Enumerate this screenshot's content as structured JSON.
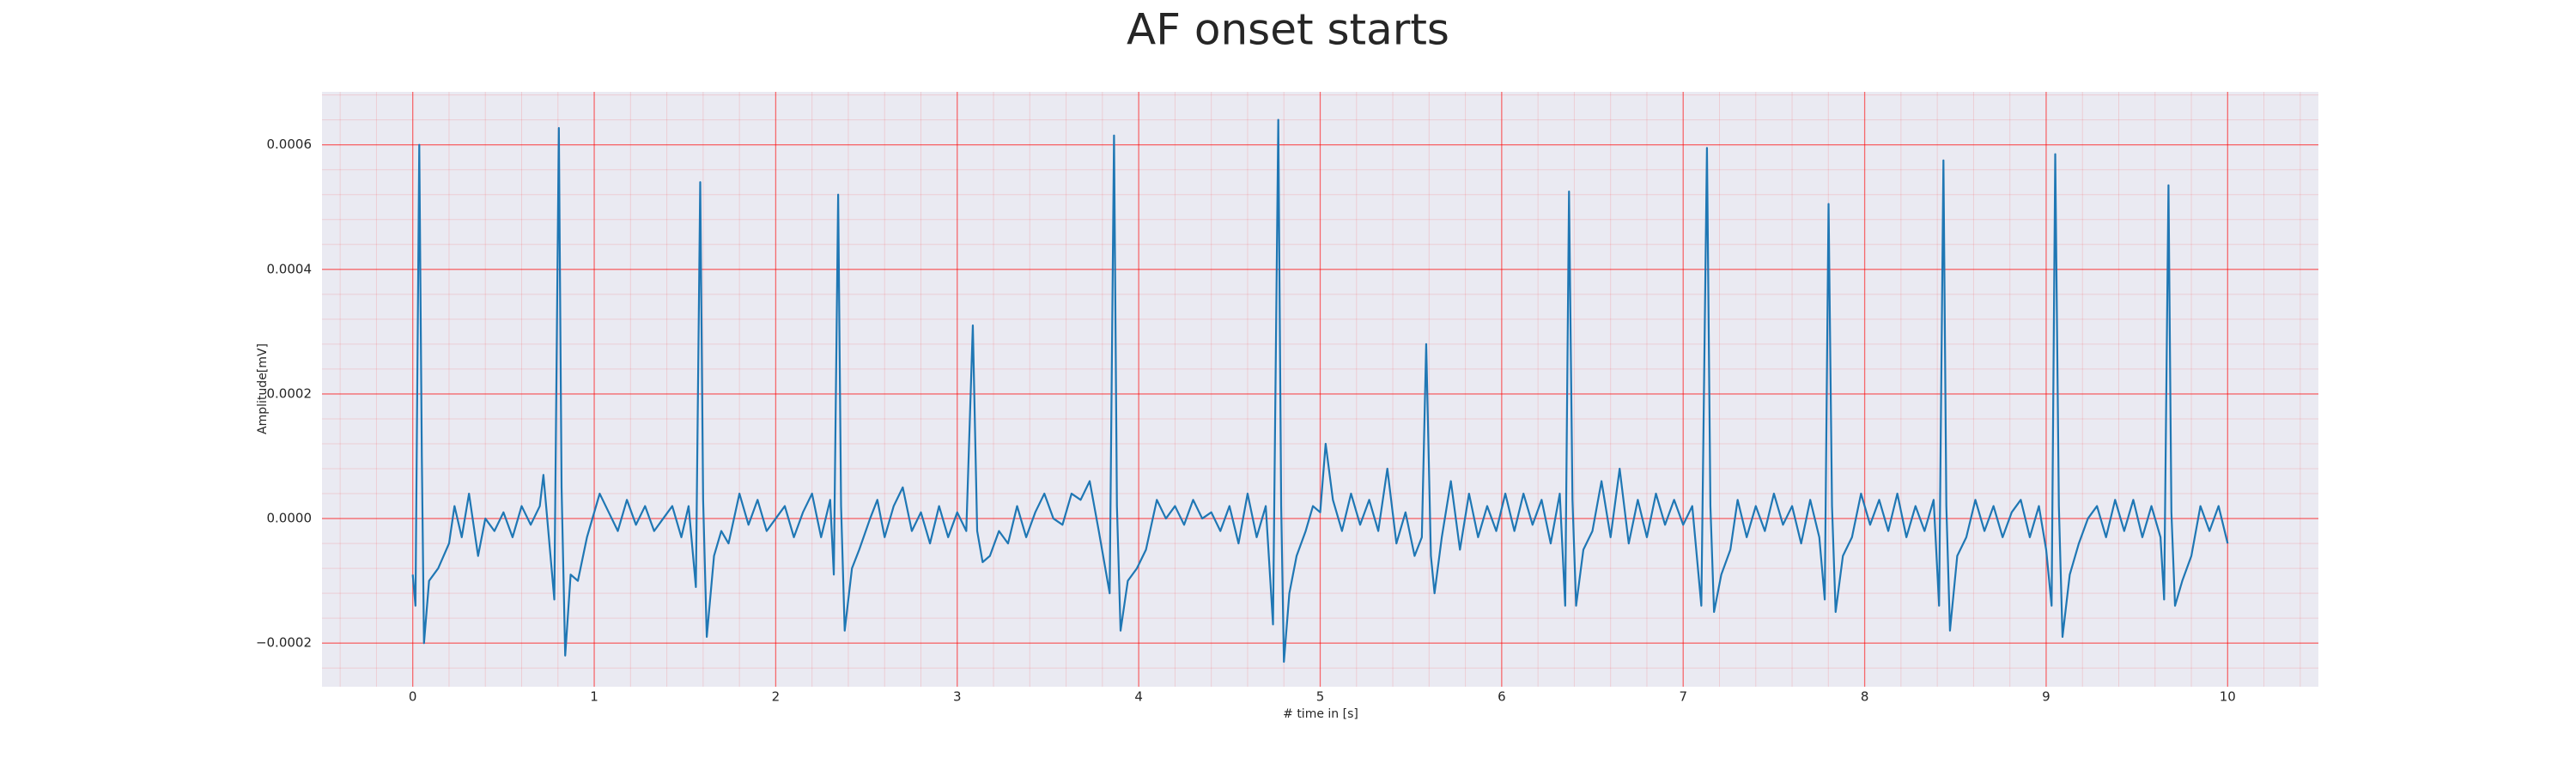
{
  "chart_data": {
    "type": "line",
    "title": "AF onset starts",
    "xlabel": "# time in [s]",
    "ylabel": "Amplitude[mV]",
    "x": [
      0,
      0.015,
      0.036,
      0.05,
      0.062,
      0.09,
      0.14,
      0.2,
      0.23,
      0.27,
      0.31,
      0.36,
      0.4,
      0.45,
      0.5,
      0.55,
      0.6,
      0.65,
      0.7,
      0.72,
      0.75,
      0.78,
      0.805,
      0.82,
      0.84,
      0.87,
      0.91,
      0.96,
      1.0,
      1.03,
      1.08,
      1.13,
      1.18,
      1.23,
      1.28,
      1.33,
      1.38,
      1.43,
      1.48,
      1.52,
      1.56,
      1.584,
      1.6,
      1.62,
      1.66,
      1.7,
      1.74,
      1.8,
      1.85,
      1.9,
      1.95,
      2.0,
      2.05,
      2.1,
      2.15,
      2.2,
      2.25,
      2.3,
      2.32,
      2.344,
      2.36,
      2.38,
      2.42,
      2.46,
      2.52,
      2.56,
      2.6,
      2.65,
      2.7,
      2.75,
      2.8,
      2.85,
      2.9,
      2.95,
      3.0,
      3.05,
      3.086,
      3.11,
      3.14,
      3.18,
      3.23,
      3.28,
      3.33,
      3.38,
      3.43,
      3.48,
      3.53,
      3.58,
      3.63,
      3.68,
      3.73,
      3.78,
      3.84,
      3.864,
      3.88,
      3.9,
      3.94,
      3.99,
      4.04,
      4.1,
      4.15,
      4.2,
      4.25,
      4.3,
      4.35,
      4.4,
      4.45,
      4.5,
      4.55,
      4.6,
      4.65,
      4.7,
      4.74,
      4.769,
      4.785,
      4.8,
      4.83,
      4.87,
      4.92,
      4.96,
      5.0,
      5.03,
      5.07,
      5.12,
      5.17,
      5.22,
      5.27,
      5.32,
      5.37,
      5.42,
      5.47,
      5.52,
      5.56,
      5.584,
      5.61,
      5.63,
      5.67,
      5.72,
      5.77,
      5.82,
      5.87,
      5.92,
      5.97,
      6.02,
      6.07,
      6.12,
      6.17,
      6.22,
      6.27,
      6.32,
      6.35,
      6.371,
      6.39,
      6.41,
      6.45,
      6.5,
      6.55,
      6.6,
      6.65,
      6.7,
      6.75,
      6.8,
      6.85,
      6.9,
      6.95,
      7.0,
      7.05,
      7.1,
      7.131,
      7.15,
      7.17,
      7.21,
      7.26,
      7.3,
      7.35,
      7.4,
      7.45,
      7.5,
      7.55,
      7.6,
      7.65,
      7.7,
      7.75,
      7.78,
      7.801,
      7.82,
      7.84,
      7.88,
      7.93,
      7.98,
      8.03,
      8.08,
      8.13,
      8.18,
      8.23,
      8.28,
      8.33,
      8.38,
      8.41,
      8.434,
      8.45,
      8.47,
      8.51,
      8.56,
      8.61,
      8.66,
      8.71,
      8.76,
      8.81,
      8.86,
      8.91,
      8.96,
      9.0,
      9.03,
      9.05,
      9.07,
      9.09,
      9.13,
      9.18,
      9.23,
      9.28,
      9.33,
      9.38,
      9.43,
      9.48,
      9.53,
      9.58,
      9.63,
      9.65,
      9.674,
      9.69,
      9.71,
      9.75,
      9.8,
      9.85,
      9.9,
      9.95,
      10.0
    ],
    "series": [
      {
        "color": "#1f77b4",
        "values": [
          -9e-05,
          -0.00014,
          0.0006,
          0.0001,
          -0.0002,
          -0.0001,
          -8e-05,
          -4e-05,
          2e-05,
          -3e-05,
          4e-05,
          -6e-05,
          0,
          -2e-05,
          1e-05,
          -3e-05,
          2e-05,
          -1e-05,
          2e-05,
          7e-05,
          -3e-05,
          -0.00013,
          0.000627,
          5e-05,
          -0.00022,
          -9e-05,
          -0.0001,
          -3e-05,
          1e-05,
          4e-05,
          1e-05,
          -2e-05,
          3e-05,
          -1e-05,
          2e-05,
          -2e-05,
          0,
          2e-05,
          -3e-05,
          2e-05,
          -0.00011,
          0.00054,
          3e-05,
          -0.00019,
          -6e-05,
          -2e-05,
          -4e-05,
          4e-05,
          -1e-05,
          3e-05,
          -2e-05,
          0,
          2e-05,
          -3e-05,
          1e-05,
          4e-05,
          -3e-05,
          3e-05,
          -9e-05,
          0.00052,
          2e-05,
          -0.00018,
          -8e-05,
          -5e-05,
          0,
          3e-05,
          -3e-05,
          2e-05,
          5e-05,
          -2e-05,
          1e-05,
          -4e-05,
          2e-05,
          -3e-05,
          1e-05,
          -2e-05,
          0.00031,
          -2e-05,
          -7e-05,
          -6e-05,
          -2e-05,
          -4e-05,
          2e-05,
          -3e-05,
          1e-05,
          4e-05,
          0,
          -1e-05,
          4e-05,
          3e-05,
          6e-05,
          -2e-05,
          -0.00012,
          0.000615,
          2e-05,
          -0.00018,
          -0.0001,
          -8e-05,
          -5e-05,
          3e-05,
          0,
          2e-05,
          -1e-05,
          3e-05,
          0,
          1e-05,
          -2e-05,
          2e-05,
          -4e-05,
          4e-05,
          -3e-05,
          2e-05,
          -0.00017,
          0.00064,
          2e-05,
          -0.00023,
          -0.00012,
          -6e-05,
          -2e-05,
          2e-05,
          1e-05,
          0.00012,
          3e-05,
          -2e-05,
          4e-05,
          -1e-05,
          3e-05,
          -2e-05,
          8e-05,
          -4e-05,
          1e-05,
          -6e-05,
          -3e-05,
          0.00028,
          -6e-05,
          -0.00012,
          -3e-05,
          6e-05,
          -5e-05,
          4e-05,
          -3e-05,
          2e-05,
          -2e-05,
          4e-05,
          -2e-05,
          4e-05,
          -1e-05,
          3e-05,
          -4e-05,
          4e-05,
          -0.00014,
          0.000525,
          3e-05,
          -0.00014,
          -5e-05,
          -2e-05,
          6e-05,
          -3e-05,
          8e-05,
          -4e-05,
          3e-05,
          -3e-05,
          4e-05,
          -1e-05,
          3e-05,
          -1e-05,
          2e-05,
          -0.00014,
          0.000595,
          2e-05,
          -0.00015,
          -9e-05,
          -5e-05,
          3e-05,
          -3e-05,
          2e-05,
          -2e-05,
          4e-05,
          -1e-05,
          2e-05,
          -4e-05,
          3e-05,
          -3e-05,
          -0.00013,
          0.000505,
          2e-05,
          -0.00015,
          -6e-05,
          -3e-05,
          4e-05,
          -1e-05,
          3e-05,
          -2e-05,
          4e-05,
          -3e-05,
          2e-05,
          -2e-05,
          3e-05,
          -0.00014,
          0.000575,
          2e-05,
          -0.00018,
          -6e-05,
          -3e-05,
          3e-05,
          -2e-05,
          2e-05,
          -3e-05,
          1e-05,
          3e-05,
          -3e-05,
          2e-05,
          -5e-05,
          -0.00014,
          0.000585,
          2e-05,
          -0.00019,
          -9e-05,
          -4e-05,
          0,
          2e-05,
          -3e-05,
          3e-05,
          -2e-05,
          3e-05,
          -3e-05,
          2e-05,
          -3e-05,
          -0.00013,
          0.000535,
          1e-05,
          -0.00014,
          -0.0001,
          -6e-05,
          2e-05,
          -2e-05,
          2e-05,
          -4e-05
        ]
      }
    ],
    "xlim": [
      -0.5,
      10.5
    ],
    "xticks": [
      0,
      1,
      2,
      3,
      4,
      5,
      6,
      7,
      8,
      9,
      10
    ],
    "ylim": [
      -0.00027,
      0.000685
    ],
    "yticks": [
      {
        "value": -0.0002,
        "label": "−0.0002"
      },
      {
        "value": 0,
        "label": "0.0000"
      },
      0.0002,
      0.0004,
      0.0006
    ],
    "grid": true,
    "minor_grid": true,
    "grid_color": "#ff0000",
    "background": "#eaeaf2"
  }
}
